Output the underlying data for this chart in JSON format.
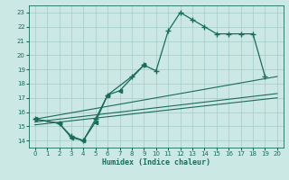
{
  "xlabel": "Humidex (Indice chaleur)",
  "bg_color": "#cce8e4",
  "grid_color": "#aacfca",
  "line_color": "#1a6b5a",
  "xlim": [
    -0.5,
    20.5
  ],
  "ylim": [
    13.5,
    23.5
  ],
  "xticks": [
    0,
    1,
    2,
    3,
    4,
    5,
    6,
    7,
    8,
    9,
    10,
    11,
    12,
    13,
    14,
    15,
    16,
    17,
    18,
    19,
    20
  ],
  "yticks": [
    14,
    15,
    16,
    17,
    18,
    19,
    20,
    21,
    22,
    23
  ],
  "series1_x": [
    0,
    2,
    3,
    4,
    5,
    6,
    8,
    9,
    10,
    11,
    12,
    13,
    14,
    15,
    16,
    17,
    18,
    19
  ],
  "series1_y": [
    15.5,
    15.2,
    14.3,
    14.0,
    15.5,
    17.2,
    18.5,
    19.3,
    18.9,
    21.7,
    23.0,
    22.5,
    22.0,
    21.5,
    21.5,
    21.5,
    21.5,
    18.5
  ],
  "series2_x": [
    0,
    2,
    3,
    4,
    5,
    6,
    7,
    9
  ],
  "series2_y": [
    15.5,
    15.2,
    14.2,
    14.0,
    15.3,
    17.2,
    17.5,
    19.3
  ],
  "line1_x": [
    0,
    20
  ],
  "line1_y": [
    15.5,
    18.5
  ],
  "line2_x": [
    0,
    20
  ],
  "line2_y": [
    15.3,
    17.3
  ],
  "line3_x": [
    0,
    20
  ],
  "line3_y": [
    15.1,
    17.0
  ]
}
